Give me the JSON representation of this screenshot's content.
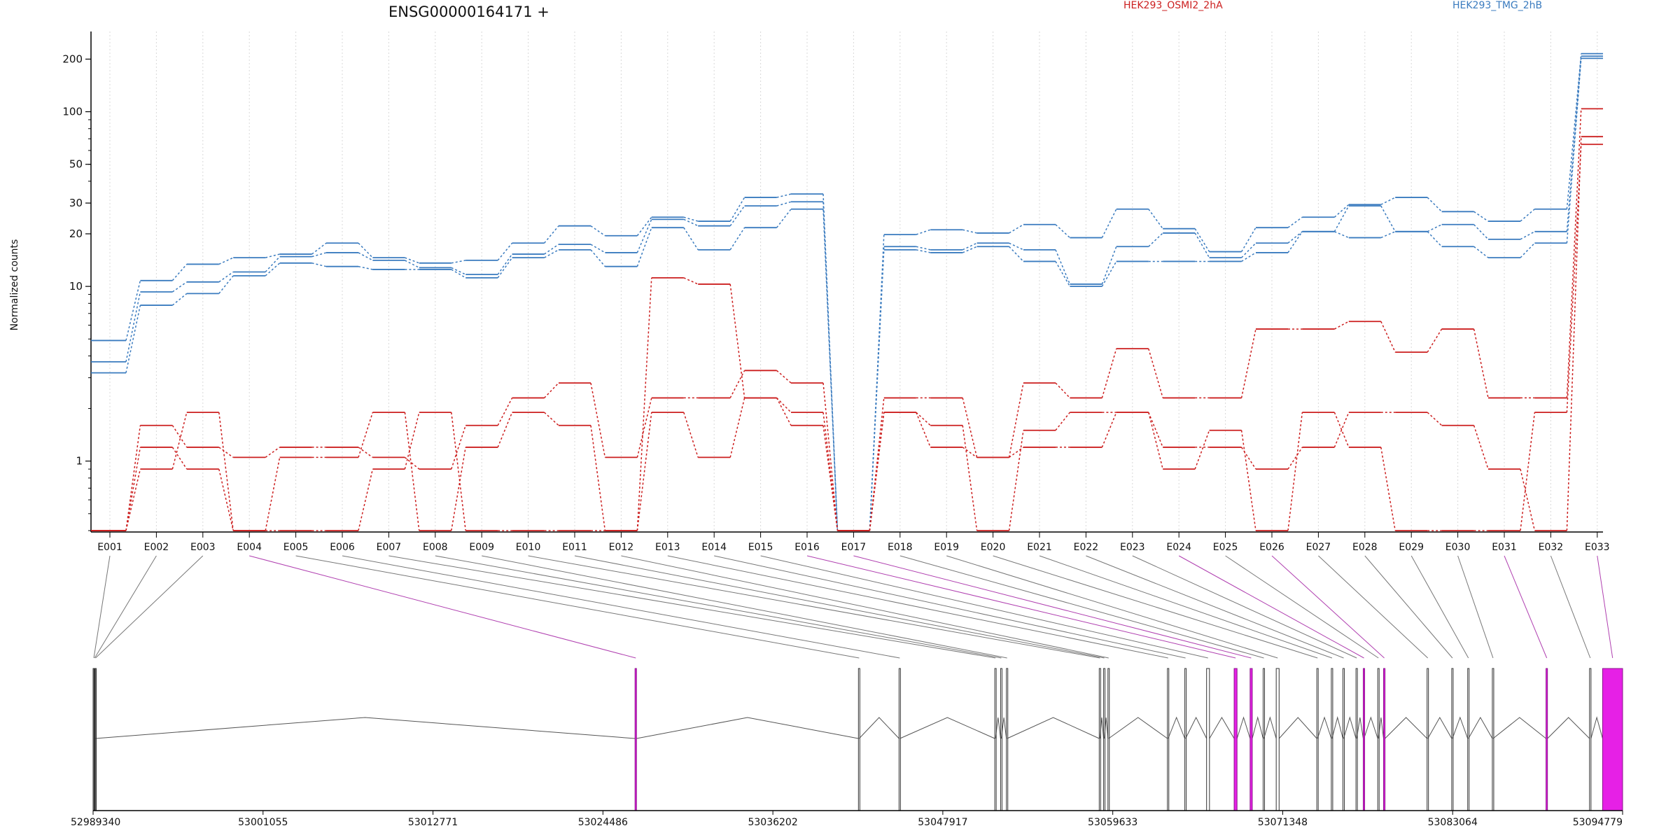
{
  "chart_data": {
    "type": "line",
    "title": "ENSG00000164171 +",
    "ylabel": "Normalized counts",
    "xlabel": "",
    "yscale": "log",
    "yticks": [
      1,
      10,
      20,
      30,
      50,
      100,
      200
    ],
    "ylim": [
      0.4,
      280
    ],
    "grid": "vertical dotted at exon positions",
    "legend": [
      {
        "name": "HEK293_OSMI2_2hA",
        "color": "#cc1f1f"
      },
      {
        "name": "HEK293_TMG_2hB",
        "color": "#3a7bbf"
      }
    ],
    "categories": [
      "E001",
      "E002",
      "E003",
      "E004",
      "E005",
      "E006",
      "E007",
      "E008",
      "E009",
      "E010",
      "E011",
      "E012",
      "E013",
      "E014",
      "E015",
      "E016",
      "E017",
      "E018",
      "E019",
      "E020",
      "E021",
      "E022",
      "E023",
      "E024",
      "E025",
      "E026",
      "E027",
      "E028",
      "E029",
      "E030",
      "E031",
      "E032",
      "E033"
    ],
    "series": [
      {
        "group": "HEK293_TMG_2hB",
        "color": "#3a7bbf",
        "values": [
          4.9,
          10.8,
          13.4,
          14.6,
          15.3,
          17.7,
          14.6,
          13.6,
          14.1,
          17.7,
          22.2,
          19.5,
          24.9,
          23.6,
          32.3,
          33.8,
          0.4,
          19.8,
          21.1,
          20.2,
          22.6,
          19.0,
          27.7,
          21.4,
          15.8,
          21.7,
          24.9,
          29.4,
          32.3,
          26.8,
          23.6,
          27.7,
          215
        ]
      },
      {
        "group": "HEK293_TMG_2hB",
        "color": "#3a7bbf",
        "values": [
          3.7,
          9.3,
          10.6,
          12.1,
          14.8,
          15.6,
          14.1,
          12.8,
          11.7,
          15.3,
          17.4,
          15.6,
          24.2,
          22.2,
          28.9,
          30.5,
          0.4,
          16.9,
          16.2,
          17.7,
          16.2,
          10.3,
          16.9,
          20.2,
          14.6,
          17.7,
          20.6,
          28.9,
          20.6,
          22.6,
          18.6,
          20.6,
          208
        ]
      },
      {
        "group": "HEK293_TMG_2hB",
        "color": "#3a7bbf",
        "values": [
          3.2,
          7.8,
          9.1,
          11.5,
          13.6,
          13.0,
          12.5,
          12.5,
          11.2,
          14.6,
          16.2,
          13.0,
          21.7,
          16.2,
          21.7,
          27.7,
          0.4,
          16.2,
          15.6,
          16.9,
          13.9,
          10.0,
          13.9,
          13.9,
          13.9,
          15.6,
          20.6,
          19.0,
          20.6,
          16.9,
          14.6,
          17.7,
          202
        ]
      },
      {
        "group": "HEK293_OSMI2_2hA",
        "color": "#cc1f1f",
        "values": [
          0.4,
          1.6,
          1.2,
          1.05,
          1.2,
          1.2,
          1.05,
          0.9,
          1.6,
          2.3,
          2.8,
          1.05,
          2.3,
          2.3,
          3.3,
          2.8,
          0.4,
          2.3,
          2.3,
          1.05,
          2.8,
          2.3,
          4.4,
          2.3,
          2.3,
          5.7,
          5.7,
          6.3,
          4.2,
          5.7,
          2.3,
          2.3,
          104
        ]
      },
      {
        "group": "HEK293_OSMI2_2hA",
        "color": "#cc1f1f",
        "values": [
          0.4,
          1.2,
          0.9,
          0.4,
          1.05,
          1.05,
          1.9,
          0.4,
          1.2,
          1.9,
          1.6,
          0.4,
          1.9,
          1.05,
          2.3,
          1.6,
          0.4,
          1.9,
          1.6,
          0.4,
          1.5,
          1.9,
          1.9,
          1.2,
          1.2,
          0.9,
          1.2,
          1.9,
          1.9,
          1.6,
          0.9,
          0.4,
          72
        ]
      },
      {
        "group": "HEK293_OSMI2_2hA",
        "color": "#cc1f1f",
        "values": [
          0.4,
          0.9,
          1.9,
          0.4,
          0.4,
          0.4,
          0.9,
          1.9,
          0.4,
          0.4,
          0.4,
          0.4,
          11.2,
          10.3,
          2.3,
          1.9,
          0.4,
          1.9,
          1.2,
          1.05,
          1.2,
          1.2,
          1.9,
          0.9,
          1.5,
          0.4,
          1.9,
          1.2,
          0.4,
          0.4,
          0.4,
          1.9,
          65
        ]
      }
    ],
    "gene_model": {
      "genomic_ticks": [
        "52989340",
        "53001055",
        "53012771",
        "53024486",
        "53036202",
        "53047917",
        "53059633",
        "53071348",
        "53083064",
        "53094779"
      ],
      "coord_range": [
        52989340,
        53094779
      ],
      "exon_color": "#e620e6",
      "highlighted_exons": [
        "E004",
        "E016",
        "E017",
        "E024",
        "E026",
        "E031",
        "E033"
      ],
      "exon_starts": [
        52989340,
        52989400,
        52989460,
        53026700,
        53042100,
        53044900,
        53051500,
        53051900,
        53052300,
        53058700,
        53059000,
        53059300,
        53063400,
        53064600,
        53066100,
        53068000,
        53069100,
        53070000,
        53070900,
        53073700,
        53074700,
        53075500,
        53076400,
        53076900,
        53077900,
        53078300,
        53081300,
        53083000,
        53084100,
        53085800,
        53089500,
        53092500,
        53093400
      ],
      "exon_ends": [
        52989360,
        52989420,
        52989480,
        53026800,
        53042150,
        53044960,
        53051550,
        53051950,
        53052350,
        53058750,
        53059050,
        53059350,
        53063450,
        53064650,
        53066300,
        53068200,
        53069250,
        53070050,
        53071100,
        53073750,
        53074750,
        53075550,
        53076450,
        53076950,
        53077950,
        53078400,
        53081350,
        53083050,
        53084150,
        53085850,
        53089600,
        53092600,
        53094779
      ]
    }
  }
}
